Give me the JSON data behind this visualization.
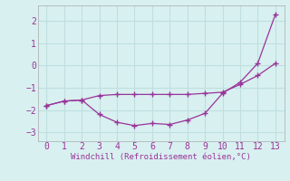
{
  "xlabel": "Windchill (Refroidissement éolien,°C)",
  "background_color": "#d8f0f0",
  "grid_color": "#c0dede",
  "line_color": "#993399",
  "xlim": [
    -0.5,
    13.5
  ],
  "ylim": [
    -3.4,
    2.7
  ],
  "xticks": [
    0,
    1,
    2,
    3,
    4,
    5,
    6,
    7,
    8,
    9,
    10,
    11,
    12,
    13
  ],
  "yticks": [
    -3,
    -2,
    -1,
    0,
    1,
    2
  ],
  "series1_x": [
    0,
    1,
    2,
    3,
    4,
    5,
    6,
    7,
    8,
    9,
    10,
    11,
    12,
    13
  ],
  "series1_y": [
    -1.8,
    -1.6,
    -1.55,
    -1.35,
    -1.3,
    -1.3,
    -1.3,
    -1.3,
    -1.3,
    -1.25,
    -1.2,
    -0.85,
    -0.45,
    0.1
  ],
  "series2_x": [
    0,
    1,
    2,
    3,
    4,
    5,
    6,
    7,
    8,
    9,
    10,
    11,
    12,
    13
  ],
  "series2_y": [
    -1.8,
    -1.6,
    -1.55,
    -2.2,
    -2.55,
    -2.7,
    -2.6,
    -2.65,
    -2.45,
    -2.15,
    -1.25,
    -0.75,
    0.1,
    2.3
  ]
}
